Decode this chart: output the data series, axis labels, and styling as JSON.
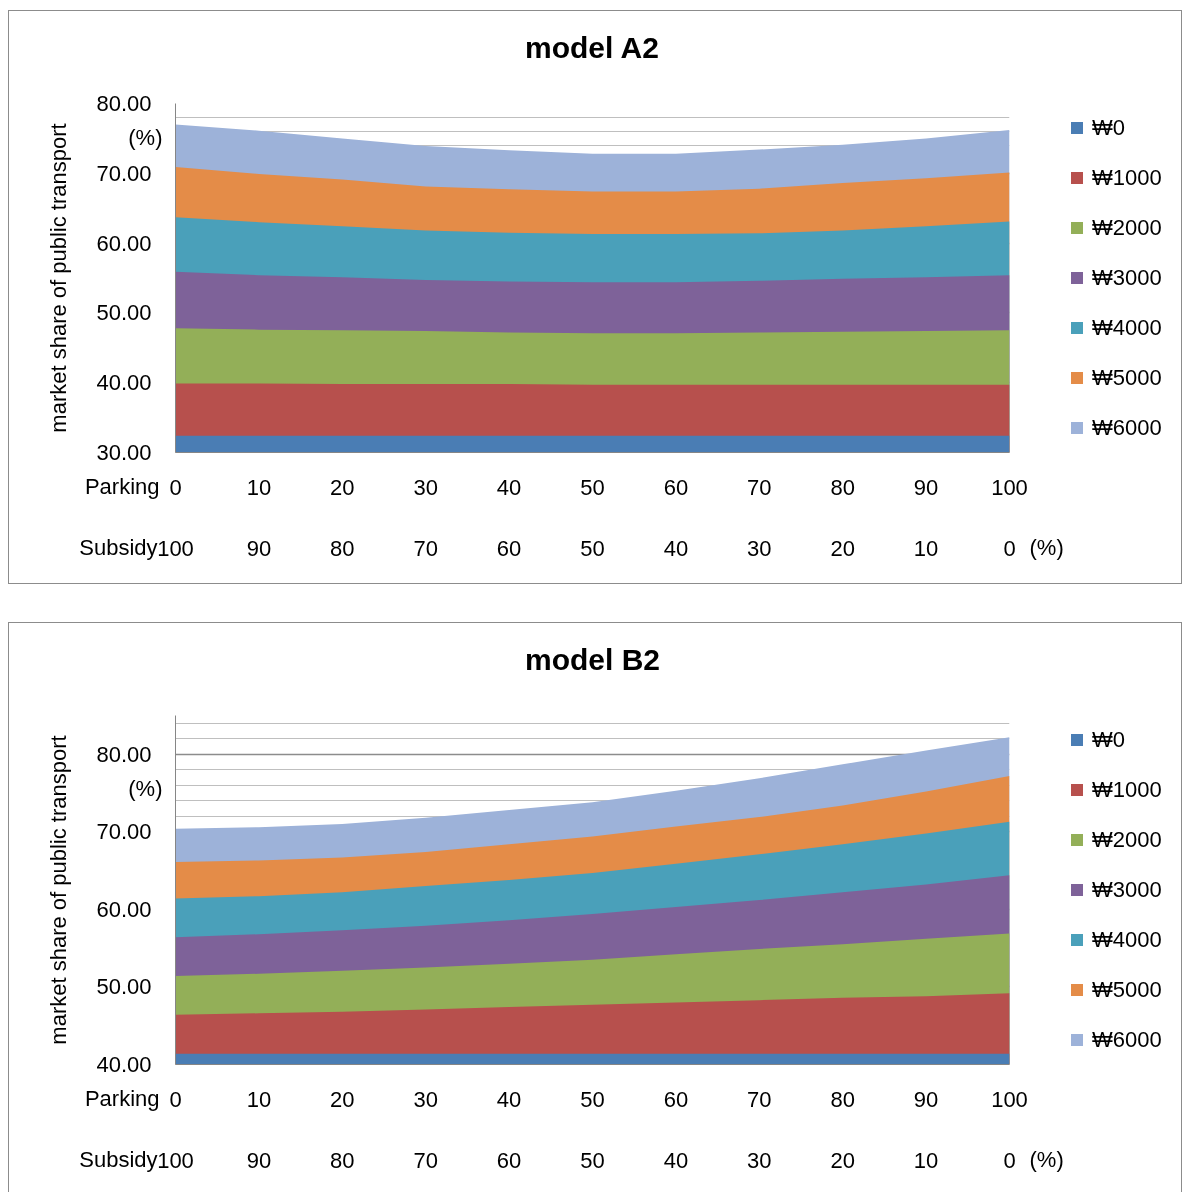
{
  "chart_data": [
    {
      "type": "area",
      "title": "model A2",
      "xlabel": "Parking",
      "x2label": "Subsidy",
      "ylabel": "market share of public transport",
      "annotations": [
        "(%)",
        "(%)"
      ],
      "x": [
        0,
        10,
        20,
        30,
        40,
        50,
        60,
        70,
        80,
        90,
        100
      ],
      "xlim": [
        0,
        100
      ],
      "xticks": [
        0,
        10,
        20,
        30,
        40,
        50,
        60,
        70,
        80,
        90,
        100
      ],
      "x2lim": [
        100,
        0
      ],
      "x2ticks": [
        100,
        90,
        80,
        70,
        60,
        50,
        40,
        30,
        20,
        10,
        0
      ],
      "ylim": [
        30,
        80
      ],
      "yticks": [
        {
          "value": 30,
          "label": "30.00"
        },
        {
          "value": 40,
          "label": "40.00"
        },
        {
          "value": 50,
          "label": "50.00"
        },
        {
          "value": 60,
          "label": "60.00"
        },
        {
          "value": 70,
          "label": "70.00"
        },
        {
          "value": 80,
          "label": "80.00"
        },
        {
          "value": 74,
          "label": null
        },
        {
          "value": 76,
          "label": null
        },
        {
          "value": 78,
          "label": null
        }
      ],
      "grid": "y",
      "legend": "right",
      "series": [
        {
          "name": "₩0",
          "color": "#4a7db4",
          "values": [
            32.4,
            32.4,
            32.4,
            32.4,
            32.4,
            32.4,
            32.4,
            32.4,
            32.4,
            32.4,
            32.4
          ]
        },
        {
          "name": "₩1000",
          "color": "#b7504d",
          "values": [
            39.9,
            39.9,
            39.8,
            39.8,
            39.8,
            39.7,
            39.7,
            39.7,
            39.7,
            39.7,
            39.7
          ]
        },
        {
          "name": "₩2000",
          "color": "#93af58",
          "values": [
            47.8,
            47.6,
            47.5,
            47.4,
            47.2,
            47.1,
            47.1,
            47.2,
            47.3,
            47.4,
            47.5
          ]
        },
        {
          "name": "₩3000",
          "color": "#7e6299",
          "values": [
            55.9,
            55.4,
            55.1,
            54.7,
            54.5,
            54.4,
            54.4,
            54.6,
            54.9,
            55.1,
            55.4
          ]
        },
        {
          "name": "₩4000",
          "color": "#4aa0ba",
          "values": [
            63.7,
            63.0,
            62.4,
            61.8,
            61.5,
            61.3,
            61.3,
            61.4,
            61.8,
            62.4,
            63.1
          ]
        },
        {
          "name": "₩5000",
          "color": "#e48c48",
          "values": [
            70.9,
            69.9,
            69.1,
            68.1,
            67.7,
            67.4,
            67.4,
            67.8,
            68.6,
            69.3,
            70.1
          ]
        },
        {
          "name": "₩6000",
          "color": "#9db2d9",
          "values": [
            77.0,
            76.1,
            75.0,
            73.9,
            73.3,
            72.8,
            72.8,
            73.4,
            74.1,
            75.0,
            76.2
          ]
        }
      ]
    },
    {
      "type": "area",
      "title": "model B2",
      "xlabel": "Parking",
      "x2label": "Subsidy",
      "ylabel": "market share of public transport",
      "annotations": [
        "(%)",
        "(%)"
      ],
      "x": [
        0,
        10,
        20,
        30,
        40,
        50,
        60,
        70,
        80,
        90,
        100
      ],
      "xlim": [
        0,
        100
      ],
      "xticks": [
        0,
        10,
        20,
        30,
        40,
        50,
        60,
        70,
        80,
        90,
        100
      ],
      "x2lim": [
        100,
        0
      ],
      "x2ticks": [
        100,
        90,
        80,
        70,
        60,
        50,
        40,
        30,
        20,
        10,
        0
      ],
      "ylim": [
        40,
        85
      ],
      "yticks": [
        {
          "value": 40,
          "label": "40.00"
        },
        {
          "value": 50,
          "label": "50.00"
        },
        {
          "value": 60,
          "label": "60.00"
        },
        {
          "value": 70,
          "label": "70.00"
        },
        {
          "value": 80,
          "label": "80.00"
        },
        {
          "value": 72,
          "label": null
        },
        {
          "value": 74,
          "label": null
        },
        {
          "value": 76,
          "label": null
        },
        {
          "value": 78,
          "label": null
        },
        {
          "value": 82,
          "label": null
        },
        {
          "value": 84,
          "label": null
        }
      ],
      "grid": "y",
      "legend": "right",
      "series": [
        {
          "name": "₩0",
          "color": "#4a7db4",
          "values": [
            41.4,
            41.4,
            41.4,
            41.4,
            41.4,
            41.4,
            41.4,
            41.4,
            41.4,
            41.4,
            41.4
          ]
        },
        {
          "name": "₩1000",
          "color": "#b7504d",
          "values": [
            46.4,
            46.6,
            46.8,
            47.1,
            47.4,
            47.7,
            48.0,
            48.3,
            48.6,
            48.8,
            49.2
          ]
        },
        {
          "name": "₩2000",
          "color": "#93af58",
          "values": [
            51.4,
            51.7,
            52.1,
            52.5,
            53.0,
            53.5,
            54.2,
            54.9,
            55.5,
            56.2,
            56.9
          ]
        },
        {
          "name": "₩3000",
          "color": "#7e6299",
          "values": [
            56.4,
            56.8,
            57.3,
            57.9,
            58.6,
            59.4,
            60.3,
            61.2,
            62.2,
            63.2,
            64.4
          ]
        },
        {
          "name": "₩4000",
          "color": "#4aa0ba",
          "values": [
            61.4,
            61.7,
            62.2,
            63.0,
            63.8,
            64.7,
            65.9,
            67.1,
            68.4,
            69.8,
            71.3
          ]
        },
        {
          "name": "₩5000",
          "color": "#e48c48",
          "values": [
            66.1,
            66.3,
            66.7,
            67.4,
            68.4,
            69.4,
            70.7,
            71.9,
            73.4,
            75.2,
            77.2
          ]
        },
        {
          "name": "₩6000",
          "color": "#9db2d9",
          "values": [
            70.4,
            70.6,
            71.0,
            71.8,
            72.8,
            73.8,
            75.3,
            76.9,
            78.7,
            80.5,
            82.2
          ]
        }
      ]
    }
  ]
}
